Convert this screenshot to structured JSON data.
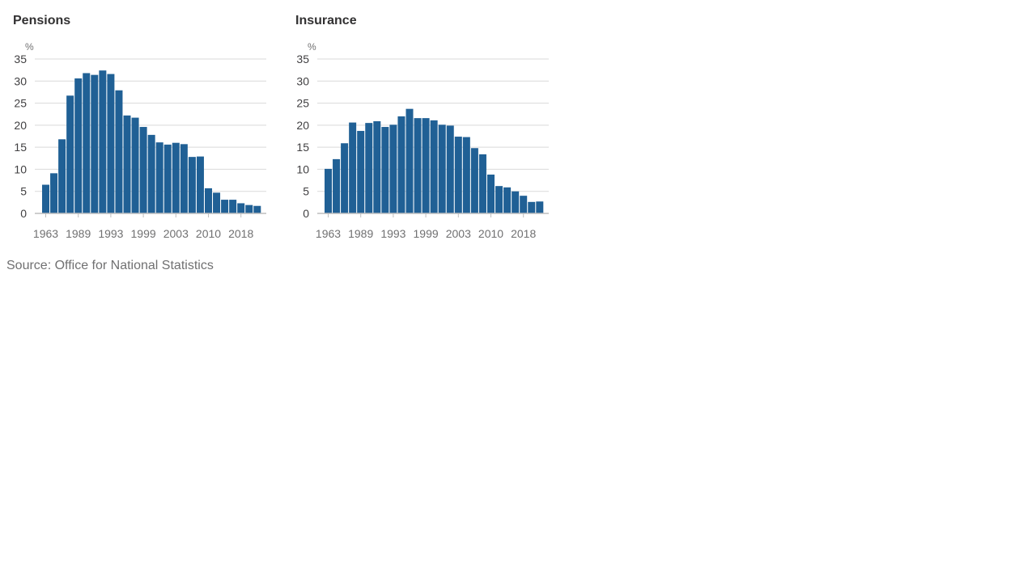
{
  "colors": {
    "bar": "#206095",
    "title": "#323132",
    "axis_text": "#414042",
    "muted_text": "#707071",
    "grid": "#d9d9d9"
  },
  "source": "Source: Office for National Statistics",
  "chart_data": [
    {
      "type": "bar",
      "title": "Pensions",
      "unit": "%",
      "ylim": [
        0,
        35
      ],
      "yticks": [
        0,
        5,
        10,
        15,
        20,
        25,
        30,
        35
      ],
      "xtick_labels": [
        "1963",
        "1989",
        "1993",
        "1999",
        "2003",
        "2010",
        "2018"
      ],
      "grid": true,
      "values": [
        6.5,
        9.1,
        16.8,
        26.7,
        30.6,
        31.8,
        31.4,
        32.4,
        31.6,
        27.9,
        22.2,
        21.7,
        19.6,
        17.8,
        16.1,
        15.6,
        16.0,
        15.7,
        12.8,
        12.9,
        5.7,
        4.7,
        3.1,
        3.1,
        2.3,
        1.9,
        1.7
      ]
    },
    {
      "type": "bar",
      "title": "Insurance",
      "unit": "%",
      "ylim": [
        0,
        35
      ],
      "yticks": [
        0,
        5,
        10,
        15,
        20,
        25,
        30,
        35
      ],
      "xtick_labels": [
        "1963",
        "1989",
        "1993",
        "1999",
        "2003",
        "2010",
        "2018"
      ],
      "grid": true,
      "values": [
        10.1,
        12.3,
        15.9,
        20.6,
        18.7,
        20.5,
        20.9,
        19.6,
        20.1,
        22.0,
        23.7,
        21.6,
        21.6,
        21.1,
        20.1,
        19.9,
        17.4,
        17.3,
        14.8,
        13.4,
        8.8,
        6.2,
        5.9,
        5.0,
        4.0,
        2.6,
        2.7
      ]
    }
  ]
}
